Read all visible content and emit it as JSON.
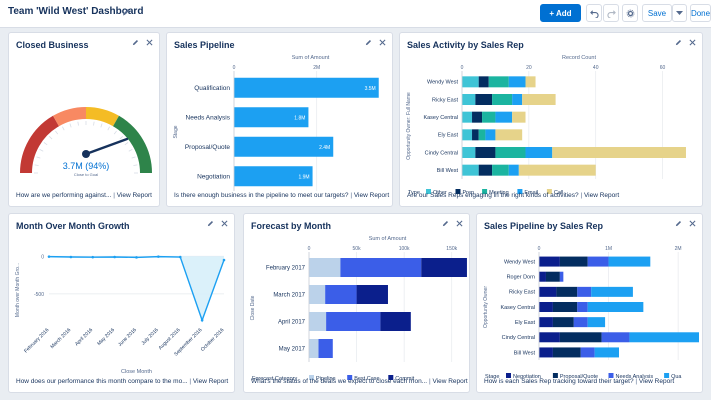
{
  "header": {
    "title": "Team 'Wild West' Dashboard",
    "add_label": "+ Add",
    "save_label": "Save",
    "done_label": "Done"
  },
  "colors": {
    "blue": "#1ca0f2",
    "teal": "#3fc4d6",
    "navy": "#032d60",
    "green": "#1bb4a0",
    "gold": "#e6d38a",
    "royal": "#3b5ee8",
    "lightblue": "#bbd2ea",
    "darknavy": "#0b1f8c",
    "periwinkle": "#6682f5"
  },
  "cards": [
    {
      "title": "Closed Business",
      "footer_text": "How are we performing against...",
      "footer_link": "View Report",
      "chart_data": {
        "type": "gauge",
        "value_label": "3.7M (94%)",
        "sub_label": "Close to Goal",
        "percent": 0.94
      }
    },
    {
      "title": "Sales Pipeline",
      "footer_text": "Is there enough business in the pipeline to meet our targets?",
      "footer_link": "View Report",
      "chart_data": {
        "type": "bar",
        "orientation": "horizontal",
        "xlabel": "Sum of Amount",
        "ylabel": "Stage",
        "xticks": [
          "0",
          "2M"
        ],
        "xlim": [
          0,
          3.7
        ],
        "categories": [
          "Qualification",
          "Needs Analysis",
          "Proposal/Quote",
          "Negotiation"
        ],
        "values": [
          3.5,
          1.8,
          2.4,
          1.9
        ],
        "value_labels": [
          "3.5M",
          "1.8M",
          "2.4M",
          "1.9M"
        ]
      }
    },
    {
      "title": "Sales Activity by Sales Rep",
      "footer_text": "Are our Sales Reps engaging in the right kinds of activities?",
      "footer_link": "View Report",
      "chart_data": {
        "type": "bar",
        "orientation": "horizontal-stacked",
        "xlabel": "Record Count",
        "ylabel": "Opportunity Owner: Full Name",
        "xticks": [
          "0",
          "20",
          "40",
          "60"
        ],
        "xlim": [
          0,
          70
        ],
        "categories": [
          "Wendy West",
          "Ricky East",
          "Kasey Central",
          "Ely East",
          "Cindy Central",
          "Bill West"
        ],
        "legend_title": "Type",
        "series": [
          {
            "name": "Other",
            "values": [
              5,
              4,
              3,
              3,
              4,
              5
            ]
          },
          {
            "name": "Prep",
            "values": [
              3,
              5,
              3,
              2,
              6,
              4
            ]
          },
          {
            "name": "Meeting",
            "values": [
              6,
              6,
              4,
              2,
              9,
              5
            ]
          },
          {
            "name": "Email",
            "values": [
              5,
              3,
              5,
              3,
              8,
              3
            ]
          },
          {
            "name": "Call",
            "values": [
              3,
              10,
              4,
              8,
              40,
              23
            ]
          }
        ]
      }
    },
    {
      "title": "Month Over Month Growth",
      "footer_text": "How does our performance this month compare to the mo...",
      "footer_link": "View Report",
      "chart_data": {
        "type": "area",
        "xlabel": "Close Month",
        "ylabel": "Month over Month Gro...",
        "yticks": [
          "0",
          "-500"
        ],
        "ylim": [
          -900,
          30
        ],
        "x": [
          "February 2016",
          "March 2016",
          "April 2016",
          "May 2016",
          "June 2016",
          "July 2016",
          "August 2016",
          "September 2016",
          "October 2016"
        ],
        "values": [
          -5,
          -10,
          -12,
          -10,
          -15,
          -5,
          -10,
          -850,
          -50
        ]
      }
    },
    {
      "title": "Forecast by Month",
      "footer_text": "What's the status of the deals we expect to close each mon...",
      "footer_link": "View Report",
      "chart_data": {
        "type": "bar",
        "orientation": "horizontal-stacked",
        "xlabel": "Sum of Amount",
        "ylabel": "Close Date",
        "xticks": [
          "0",
          "50k",
          "100k",
          "150k"
        ],
        "xlim": [
          0,
          165
        ],
        "categories": [
          "February 2017",
          "March 2017",
          "April 2017",
          "May 2017"
        ],
        "legend_title": "Forecast Category",
        "series": [
          {
            "name": "Pipeline",
            "values": [
              33,
              17,
              18,
              10
            ]
          },
          {
            "name": "Best Case",
            "values": [
              85,
              33,
              57,
              15
            ]
          },
          {
            "name": "Commit",
            "values": [
              48,
              33,
              32,
              0
            ]
          }
        ]
      }
    },
    {
      "title": "Sales Pipeline by Sales Rep",
      "footer_text": "How is each Sales Rep tracking toward their target?",
      "footer_link": "View Report",
      "chart_data": {
        "type": "bar",
        "orientation": "horizontal-stacked",
        "xlabel": "",
        "ylabel": "Opportunity Owner",
        "xticks": [
          "0",
          "1M",
          "2M"
        ],
        "xlim": [
          0,
          2.3
        ],
        "categories": [
          "Wendy West",
          "Roger Dorn",
          "Ricky East",
          "Kasey Central",
          "Ely East",
          "Cindy Central",
          "Bill West"
        ],
        "legend_title": "Stage",
        "series": [
          {
            "name": "Negotiation",
            "values": [
              0.3,
              0.1,
              0.25,
              0.2,
              0.2,
              0.3,
              0.2
            ]
          },
          {
            "name": "Proposal/Quote",
            "values": [
              0.4,
              0.2,
              0.3,
              0.35,
              0.3,
              0.6,
              0.4
            ]
          },
          {
            "name": "Needs Analysis",
            "values": [
              0.3,
              0.05,
              0.2,
              0.15,
              0.2,
              0.4,
              0.2
            ]
          },
          {
            "name": "Qua",
            "values": [
              0.6,
              0.0,
              0.6,
              0.8,
              0.25,
              1.0,
              0.35
            ]
          }
        ]
      }
    }
  ]
}
